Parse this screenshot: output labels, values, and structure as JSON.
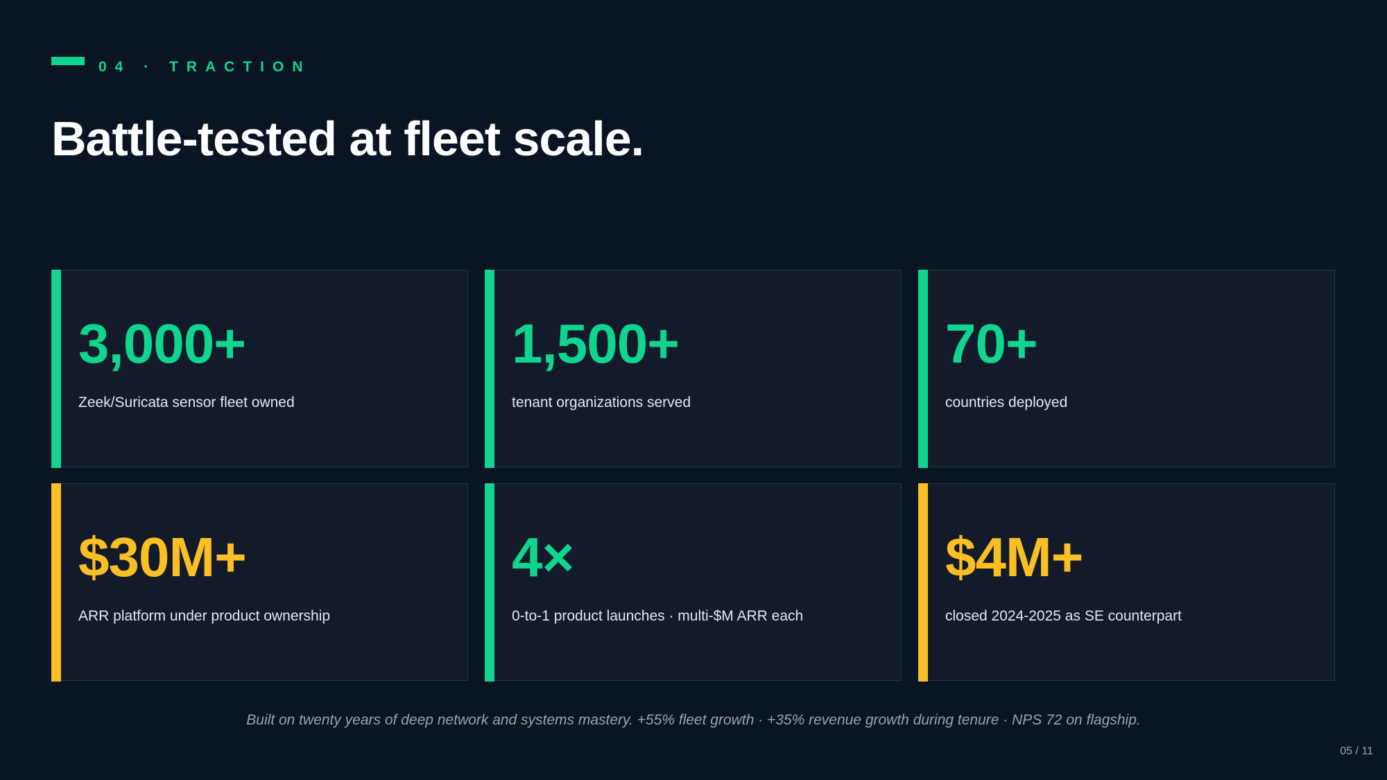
{
  "header": {
    "eyebrow": "04 · TRACTION",
    "title": "Battle-tested at fleet scale."
  },
  "colors": {
    "background": "#0a1423",
    "card_background": "#131b2b",
    "green_accent": "#10d58f",
    "yellow_accent": "#fbbf24",
    "muted_text": "#9aa3b2"
  },
  "metrics": [
    {
      "value": "3,000+",
      "label": "Zeek/Suricata sensor fleet owned",
      "accent": "#10d58f"
    },
    {
      "value": "1,500+",
      "label": "tenant organizations served",
      "accent": "#10d58f"
    },
    {
      "value": "70+",
      "label": "countries deployed",
      "accent": "#10d58f"
    },
    {
      "value": "$30M+",
      "label": "ARR platform under product ownership",
      "accent": "#fbbf24"
    },
    {
      "value": "4×",
      "label": "0-to-1 product launches · multi-$M ARR each",
      "accent": "#10d58f"
    },
    {
      "value": "$4M+",
      "label": "closed 2024-2025 as SE counterpart",
      "accent": "#fbbf24"
    }
  ],
  "footer": {
    "note": "Built on twenty years of deep network and systems mastery. +55% fleet growth · +35% revenue growth during tenure · NPS 72 on flagship.",
    "page": "05 / 11"
  }
}
